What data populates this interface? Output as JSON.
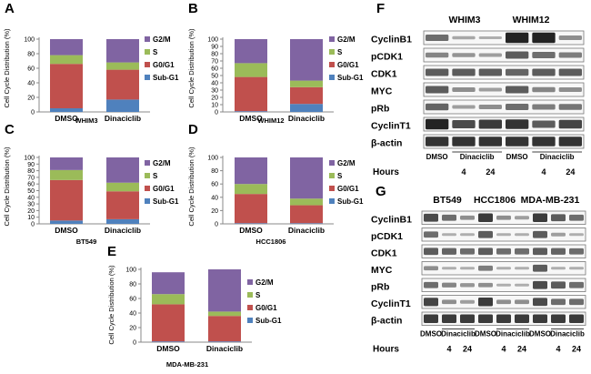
{
  "colors": {
    "G2M": "#8064a2",
    "S": "#9bbb59",
    "G0G1": "#c0504d",
    "SubG1": "#4f81bd",
    "blot": "#1a1a1a"
  },
  "chart_data": [
    {
      "type": "bar",
      "stacked": true,
      "panel": "A",
      "title": "WHIM3",
      "ylabel": "Cell Cycle Distribution (%)",
      "categories": [
        "DMSO",
        "Dinaciclib"
      ],
      "yticks": [
        "0",
        "20",
        "40",
        "60",
        "80",
        "100"
      ],
      "ylim": [
        0,
        100
      ],
      "series": [
        {
          "name": "Sub-G1",
          "values": [
            5,
            17
          ]
        },
        {
          "name": "G0/G1",
          "values": [
            61,
            41
          ]
        },
        {
          "name": "S",
          "values": [
            12,
            10
          ]
        },
        {
          "name": "G2/M",
          "values": [
            22,
            32
          ]
        }
      ]
    },
    {
      "type": "bar",
      "stacked": true,
      "panel": "B",
      "title": "WHIM12",
      "ylabel": "Cell Cycle Distribution (%)",
      "categories": [
        "DMSO",
        "Dinaciclib"
      ],
      "yticks": [
        "0",
        "10",
        "20",
        "30",
        "40",
        "50",
        "60",
        "70",
        "80",
        "90",
        "100"
      ],
      "ylim": [
        0,
        100
      ],
      "series": [
        {
          "name": "Sub-G1",
          "values": [
            1,
            11
          ]
        },
        {
          "name": "G0/G1",
          "values": [
            47,
            23
          ]
        },
        {
          "name": "S",
          "values": [
            19,
            9
          ]
        },
        {
          "name": "G2/M",
          "values": [
            33,
            57
          ]
        }
      ]
    },
    {
      "type": "bar",
      "stacked": true,
      "panel": "C",
      "title": "BT549",
      "ylabel": "Cell Cycle Distribution (%)",
      "categories": [
        "DMSO",
        "Dinaciclib"
      ],
      "yticks": [
        "0",
        "10",
        "20",
        "30",
        "40",
        "50",
        "60",
        "70",
        "80",
        "90",
        "100"
      ],
      "ylim": [
        0,
        100
      ],
      "series": [
        {
          "name": "Sub-G1",
          "values": [
            5,
            7
          ]
        },
        {
          "name": "G0/G1",
          "values": [
            61,
            42
          ]
        },
        {
          "name": "S",
          "values": [
            15,
            13
          ]
        },
        {
          "name": "G2/M",
          "values": [
            19,
            38
          ]
        }
      ]
    },
    {
      "type": "bar",
      "stacked": true,
      "panel": "D",
      "title": "HCC1806",
      "ylabel": "Cell Cycle Distribution (%)",
      "categories": [
        "DMSO",
        "Dinaciclib"
      ],
      "yticks": [
        "0",
        "20",
        "40",
        "60",
        "80",
        "100"
      ],
      "ylim": [
        0,
        100
      ],
      "series": [
        {
          "name": "Sub-G1",
          "values": [
            1,
            1
          ]
        },
        {
          "name": "G0/G1",
          "values": [
            44,
            27
          ]
        },
        {
          "name": "S",
          "values": [
            15,
            10
          ]
        },
        {
          "name": "G2/M",
          "values": [
            40,
            62
          ]
        }
      ]
    },
    {
      "type": "bar",
      "stacked": true,
      "panel": "E",
      "title": "MDA-MB-231",
      "ylabel": "Cell Cycle Distribution (%)",
      "categories": [
        "DMSO",
        "Dinaciclib"
      ],
      "yticks": [
        "0",
        "20",
        "40",
        "60",
        "80",
        "100"
      ],
      "ylim": [
        0,
        100
      ],
      "series": [
        {
          "name": "Sub-G1",
          "values": [
            1,
            1
          ]
        },
        {
          "name": "G0/G1",
          "values": [
            51,
            35
          ]
        },
        {
          "name": "S",
          "values": [
            14,
            6
          ]
        },
        {
          "name": "G2/M",
          "values": [
            30,
            58
          ]
        }
      ]
    }
  ],
  "blots": [
    {
      "panel": "F",
      "groups": [
        "WHIM3",
        "WHIM12"
      ],
      "proteins": [
        "CyclinB1",
        "pCDK1",
        "CDK1",
        "MYC",
        "pRb",
        "CyclinT1",
        "β-actin"
      ],
      "lanes": [
        "DMSO",
        "Dinaciclib",
        "DMSO",
        "Dinaciclib"
      ],
      "hours_label": "Hours",
      "hours": [
        "4",
        "24",
        "4",
        "24"
      ],
      "intensity": [
        [
          0.5,
          0.15,
          0.1,
          0.95,
          0.95,
          0.3
        ],
        [
          0.35,
          0.25,
          0.2,
          0.6,
          0.5,
          0.4
        ],
        [
          0.6,
          0.6,
          0.6,
          0.55,
          0.6,
          0.6
        ],
        [
          0.6,
          0.3,
          0.2,
          0.6,
          0.35,
          0.3
        ],
        [
          0.55,
          0.2,
          0.3,
          0.5,
          0.4,
          0.45
        ],
        [
          0.95,
          0.7,
          0.8,
          0.85,
          0.6,
          0.75
        ],
        [
          0.85,
          0.85,
          0.85,
          0.85,
          0.85,
          0.85
        ]
      ]
    },
    {
      "panel": "G",
      "groups": [
        "BT549",
        "HCC1806",
        "MDA-MB-231"
      ],
      "proteins": [
        "CyclinB1",
        "pCDK1",
        "CDK1",
        "MYC",
        "pRb",
        "CyclinT1",
        "β-actin"
      ],
      "lanes": [
        "DMSO",
        "Dinaciclib",
        "DMSO",
        "Dinaciclib",
        "DMSO",
        "Dinaciclib"
      ],
      "hours_label": "Hours",
      "hours": [
        "4",
        "24",
        "4",
        "24",
        "4",
        "24"
      ],
      "intensity": [
        [
          0.7,
          0.5,
          0.3,
          0.8,
          0.3,
          0.2,
          0.8,
          0.6,
          0.5
        ],
        [
          0.5,
          0.1,
          0.1,
          0.6,
          0.1,
          0.1,
          0.6,
          0.2,
          0.1
        ],
        [
          0.6,
          0.55,
          0.5,
          0.6,
          0.5,
          0.5,
          0.6,
          0.55,
          0.5
        ],
        [
          0.3,
          0.1,
          0.1,
          0.4,
          0.1,
          0.1,
          0.6,
          0.1,
          0.1
        ],
        [
          0.5,
          0.35,
          0.25,
          0.3,
          0.1,
          0.1,
          0.7,
          0.6,
          0.5
        ],
        [
          0.75,
          0.3,
          0.2,
          0.8,
          0.3,
          0.3,
          0.7,
          0.5,
          0.5
        ],
        [
          0.8,
          0.8,
          0.8,
          0.8,
          0.8,
          0.8,
          0.8,
          0.8,
          0.8
        ]
      ]
    }
  ]
}
